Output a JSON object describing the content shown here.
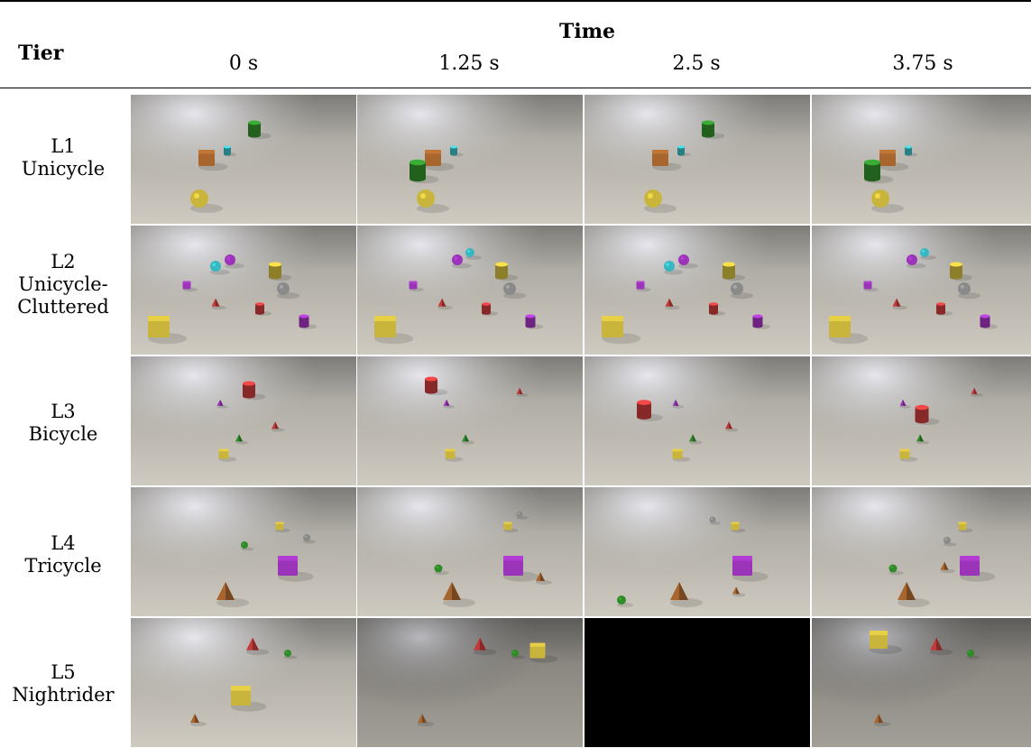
{
  "header": {
    "tier": "Tier",
    "time": "Time",
    "columns": [
      "0 s",
      "1.25 s",
      "2.5 s",
      "3.75 s"
    ]
  },
  "rows": [
    {
      "tier": "L1",
      "name": "Unicycle"
    },
    {
      "tier": "L2",
      "name": "Unicycle-",
      "name2": "Cluttered"
    },
    {
      "tier": "L3",
      "name": "Bicycle"
    },
    {
      "tier": "L4",
      "name": "Tricycle"
    },
    {
      "tier": "L5",
      "name": "Nightrider"
    }
  ],
  "colors": {
    "floor": "#b9b6ae",
    "floor_light": "#e6e6ee",
    "green": "#2f8a2a",
    "brown": "#a8662e",
    "cyan": "#37b7c0",
    "yellow": "#c9b53c",
    "purple": "#9b34b8",
    "red": "#c23a3a",
    "gray": "#8a8a8a",
    "black": "#000000"
  }
}
